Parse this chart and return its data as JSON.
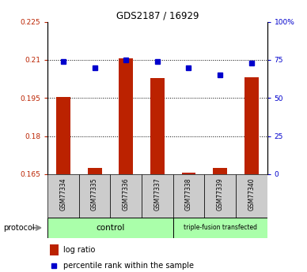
{
  "title": "GDS2187 / 16929",
  "samples": [
    "GSM77334",
    "GSM77335",
    "GSM77336",
    "GSM77337",
    "GSM77338",
    "GSM77339",
    "GSM77340"
  ],
  "log_ratio": [
    0.1955,
    0.1673,
    0.2105,
    0.2028,
    0.1655,
    0.1673,
    0.203
  ],
  "percentile_rank": [
    74,
    70,
    75,
    74,
    70,
    65,
    73
  ],
  "baseline": 0.165,
  "ylim_left": [
    0.165,
    0.225
  ],
  "ylim_right": [
    0,
    100
  ],
  "yticks_left": [
    0.165,
    0.18,
    0.195,
    0.21,
    0.225
  ],
  "yticks_right": [
    0,
    25,
    50,
    75,
    100
  ],
  "ytick_labels_left": [
    "0.165",
    "0.18",
    "0.195",
    "0.21",
    "0.225"
  ],
  "ytick_labels_right": [
    "0",
    "25",
    "50",
    "75",
    "100%"
  ],
  "bar_color": "#bb2200",
  "dot_color": "#0000cc",
  "n_control": 4,
  "n_transfected": 3,
  "control_label": "control",
  "transfected_label": "triple-fusion transfected",
  "protocol_label": "protocol",
  "legend_bar_label": "log ratio",
  "legend_dot_label": "percentile rank within the sample",
  "group_box_color": "#aaffaa",
  "sample_box_color": "#cccccc",
  "arrow_color": "#888888"
}
